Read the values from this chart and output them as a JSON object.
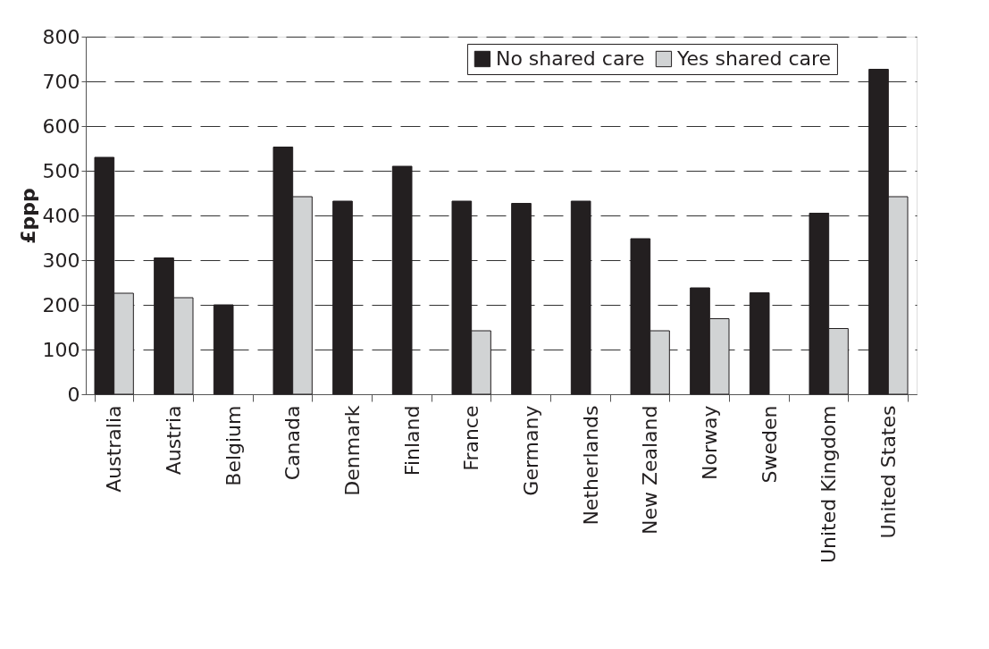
{
  "chart_data": {
    "type": "bar",
    "ylabel": "£ppp",
    "categories": [
      "Australia",
      "Austria",
      "Belgium",
      "Canada",
      "Denmark",
      "Finland",
      "France",
      "Germany",
      "Netherlands",
      "New Zealand",
      "Norway",
      "Sweden",
      "United Kingdom",
      "United States"
    ],
    "series": [
      {
        "name": "No shared care",
        "color": "#231f20",
        "values": [
          530,
          305,
          200,
          553,
          432,
          510,
          432,
          427,
          432,
          348,
          238,
          227,
          405,
          727
        ]
      },
      {
        "name": "Yes shared care",
        "color": "#d1d3d4",
        "values": [
          226,
          216,
          null,
          442,
          null,
          null,
          142,
          null,
          null,
          142,
          169,
          null,
          147,
          442
        ]
      }
    ],
    "ylim": [
      0,
      800
    ],
    "yticks": [
      0,
      100,
      200,
      300,
      400,
      500,
      600,
      700,
      800
    ],
    "grid": "y",
    "legend": "top right"
  }
}
